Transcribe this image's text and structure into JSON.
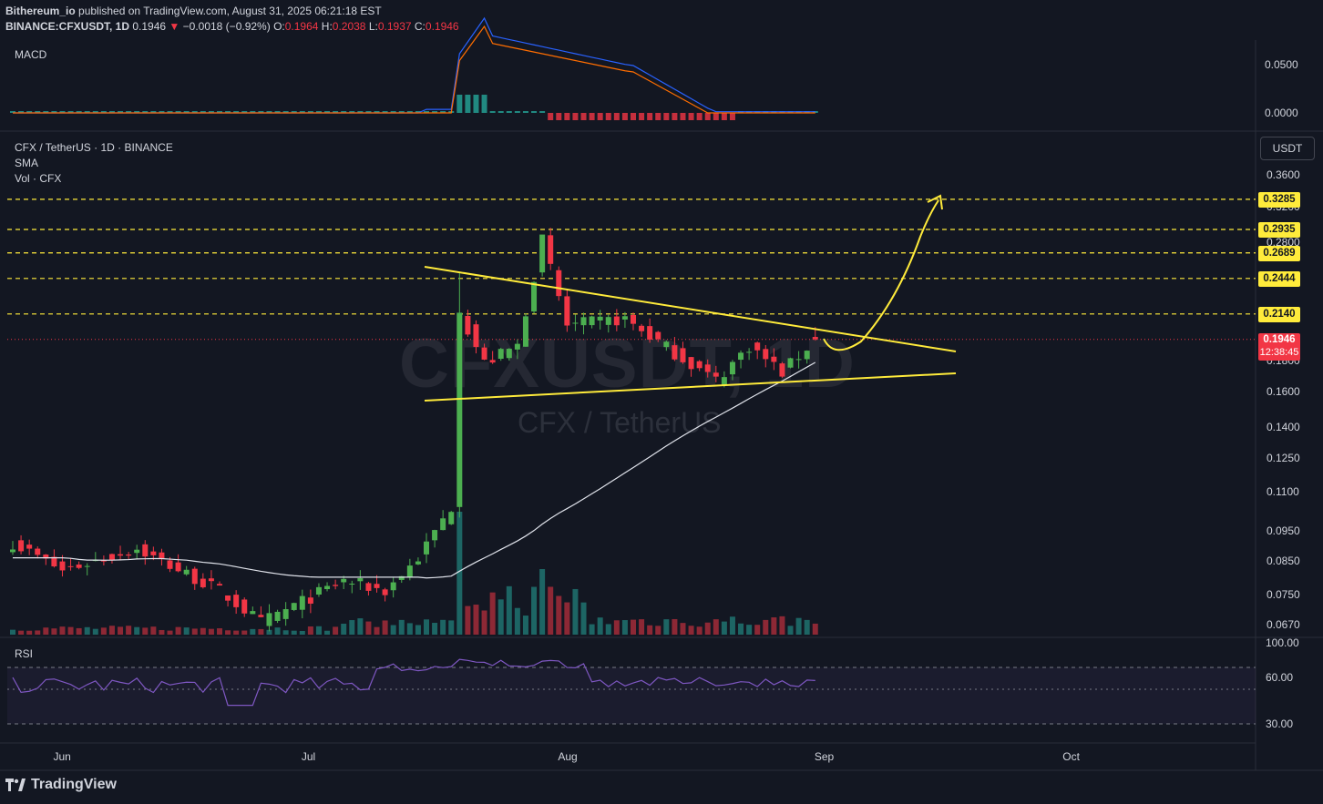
{
  "header": {
    "publisher": "Bithereum_io",
    "published_text": "published on TradingView.com, August 31, 2025 06:21:18 EST",
    "symbol": "BINANCE:CFXUSDT, 1D",
    "last": "0.1946",
    "change": "−0.0018 (−0.92%)",
    "o_label": "O:",
    "o": "0.1964",
    "h_label": "H:",
    "h": "0.2038",
    "l_label": "L:",
    "l": "0.1937",
    "c_label": "C:",
    "c": "0.1946"
  },
  "panes": {
    "macd_label": "MACD",
    "main_title": "CFX / TetherUS · 1D · BINANCE",
    "sma_label": "SMA",
    "vol_label": "Vol · CFX",
    "rsi_label": "RSI",
    "currency_button": "USDT"
  },
  "watermark": {
    "symbol": "CFXUSDT, 1D",
    "name": "CFX / TetherUS"
  },
  "branding": {
    "logo_text": "TradingView"
  },
  "axes": {
    "macd_ticks": [
      "0.0500",
      "0.0000"
    ],
    "price_ticks": [
      "0.3600",
      "0.3200",
      "0.2800",
      "0.1800",
      "0.1600",
      "0.1400",
      "0.1250",
      "0.1100",
      "0.0950",
      "0.0850",
      "0.0750",
      "0.0670"
    ],
    "rsi_ticks": [
      "100.00",
      "60.00",
      "30.00"
    ],
    "time_ticks": [
      "Jun",
      "Jul",
      "Aug",
      "Sep",
      "Oct"
    ]
  },
  "levels": {
    "tags": [
      "0.3285",
      "0.2935",
      "0.2689",
      "0.2444",
      "0.2140"
    ],
    "current_price": "0.1946",
    "countdown": "12:38:45"
  },
  "colors": {
    "up": "#26a69a",
    "up_bright": "#4caf50",
    "down": "#f23645",
    "level": "#ffeb3b",
    "sma": "#e0e3eb"
  },
  "chart_data": {
    "type": "candlestick",
    "symbol": "CFX / TetherUS",
    "interval": "1D",
    "scale": "log",
    "current_price": 0.1946,
    "resistance_levels": [
      0.3285,
      0.2935,
      0.2689,
      0.2444,
      0.214
    ],
    "pattern": "symmetrical triangle",
    "triangle_upper": [
      {
        "date": "2025-07-16",
        "price": 0.26
      },
      {
        "date": "2025-09-17",
        "price": 0.184
      }
    ],
    "triangle_lower": [
      {
        "date": "2025-07-16",
        "price": 0.157
      },
      {
        "date": "2025-09-17",
        "price": 0.171
      }
    ],
    "projection": [
      {
        "date": "2025-08-31",
        "price": 0.188
      },
      {
        "date": "2025-09-05",
        "price": 0.2
      },
      {
        "date": "2025-09-09",
        "price": 0.24
      },
      {
        "date": "2025-09-14",
        "price": 0.3285
      }
    ],
    "ohlc_anchor": [
      {
        "date": "2025-05-26",
        "c": 0.091
      },
      {
        "date": "2025-06-01",
        "c": 0.082
      },
      {
        "date": "2025-06-10",
        "c": 0.089
      },
      {
        "date": "2025-06-20",
        "c": 0.076
      },
      {
        "date": "2025-06-25",
        "c": 0.0675
      },
      {
        "date": "2025-07-05",
        "c": 0.079
      },
      {
        "date": "2025-07-10",
        "c": 0.076
      },
      {
        "date": "2025-07-14",
        "c": 0.086
      },
      {
        "date": "2025-07-18",
        "c": 0.104
      },
      {
        "date": "2025-07-19",
        "c": 0.215
      },
      {
        "date": "2025-07-22",
        "c": 0.178
      },
      {
        "date": "2025-07-26",
        "c": 0.19
      },
      {
        "date": "2025-07-29",
        "c": 0.282
      },
      {
        "date": "2025-08-01",
        "c": 0.205
      },
      {
        "date": "2025-08-08",
        "c": 0.21
      },
      {
        "date": "2025-08-14",
        "c": 0.185
      },
      {
        "date": "2025-08-19",
        "c": 0.167
      },
      {
        "date": "2025-08-23",
        "c": 0.19
      },
      {
        "date": "2025-08-27",
        "c": 0.172
      },
      {
        "date": "2025-08-31",
        "c": 0.1946
      }
    ],
    "indicators": [
      "MACD",
      "SMA",
      "Vol",
      "RSI"
    ]
  }
}
